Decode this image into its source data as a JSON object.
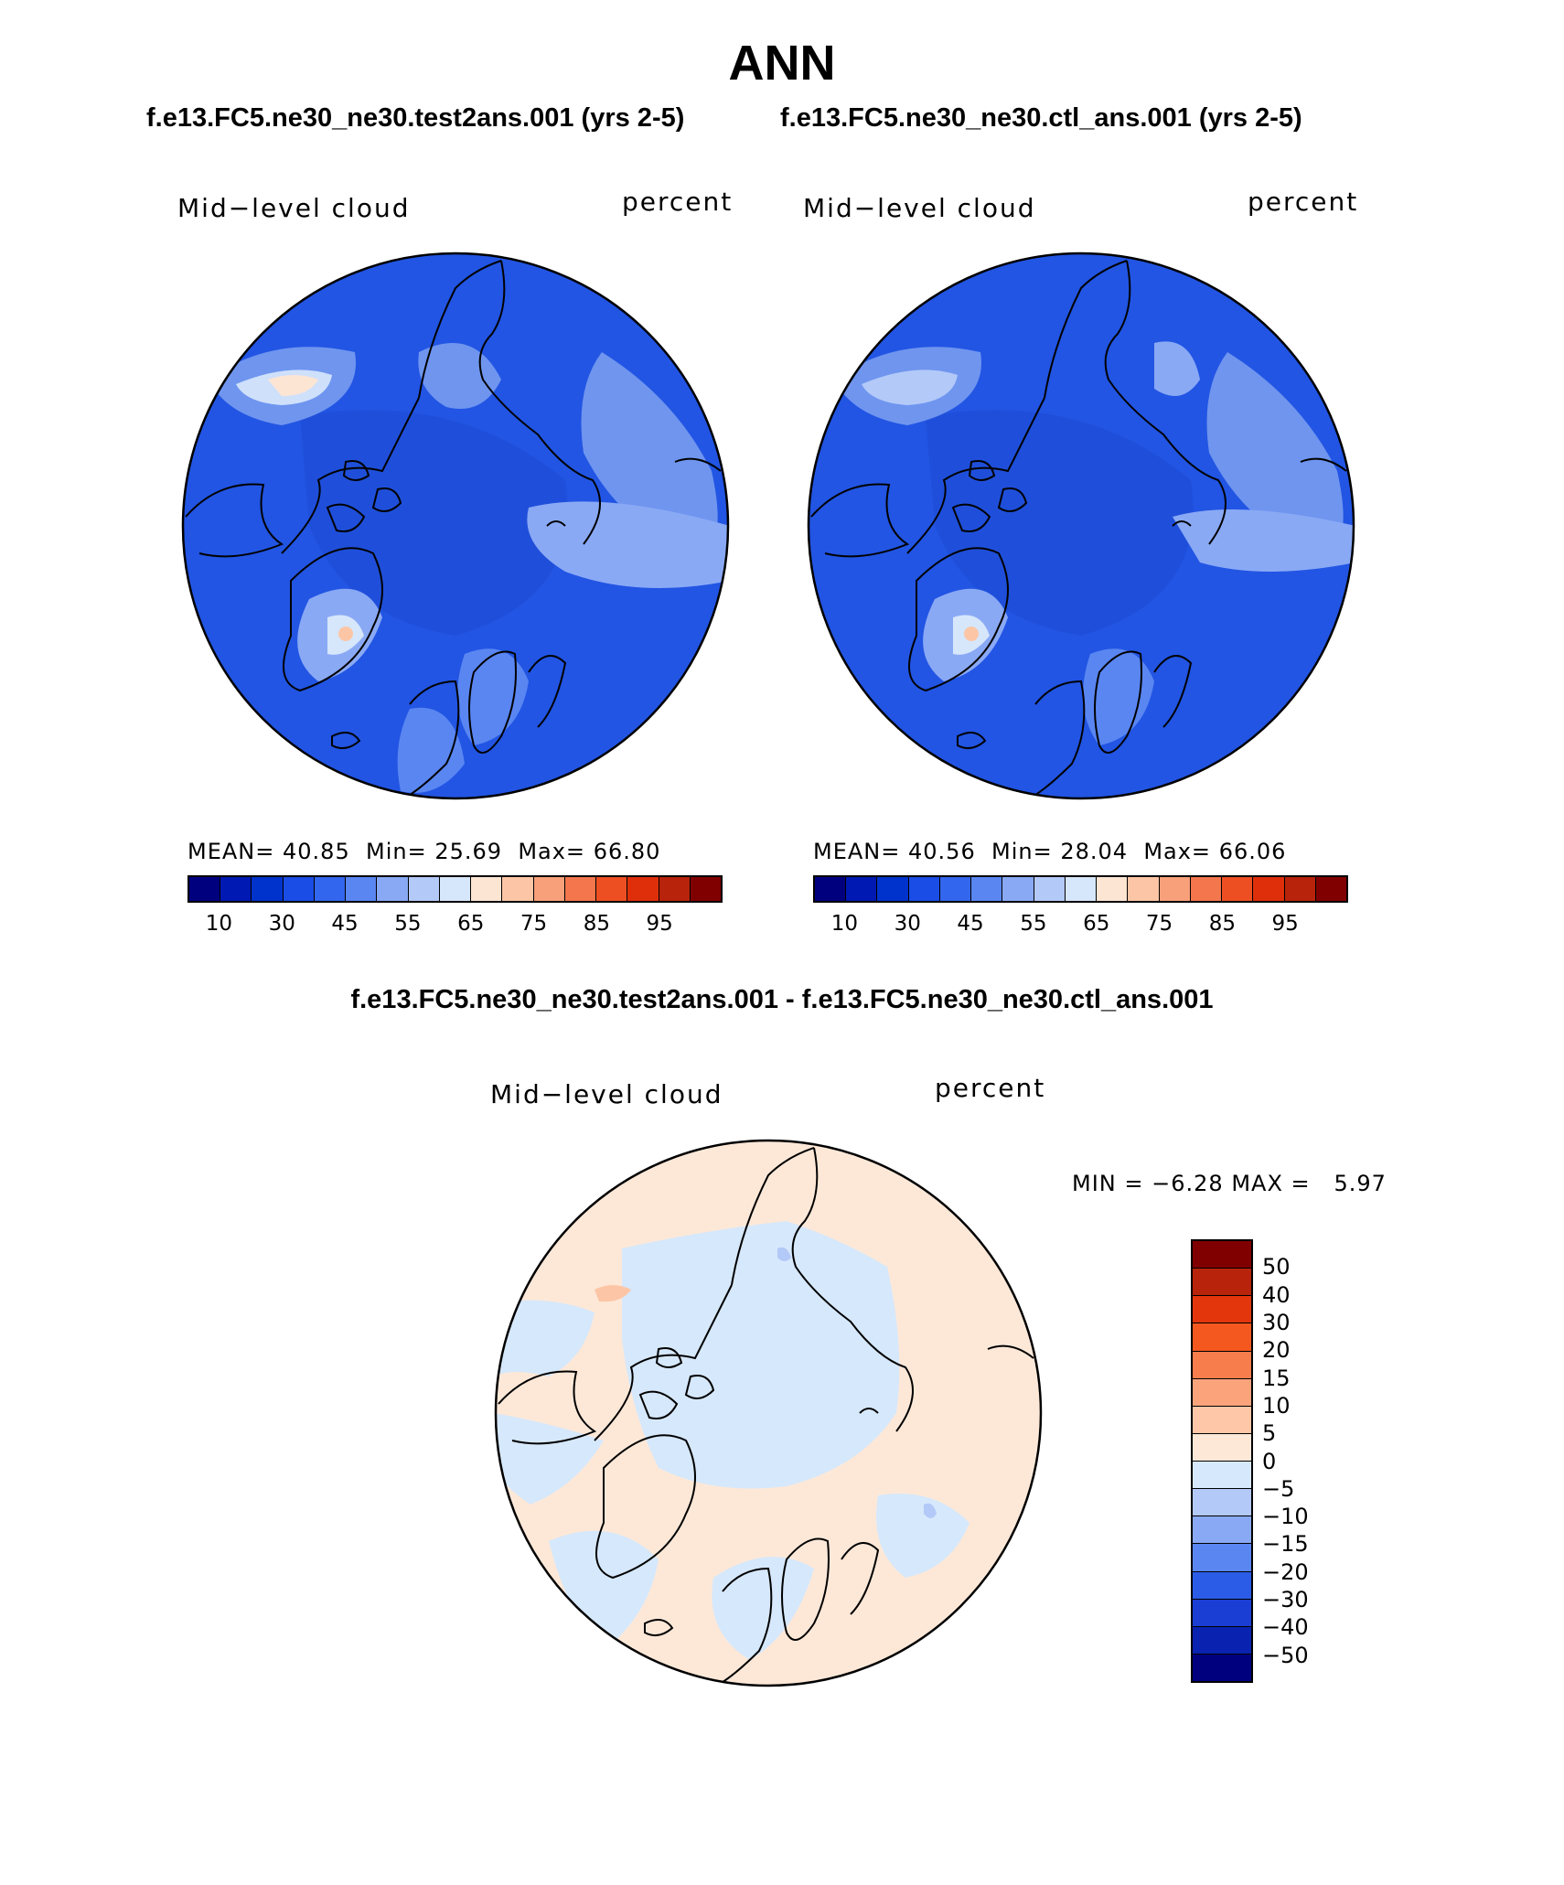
{
  "figure": {
    "title": "ANN",
    "case_a": "f.e13.FC5.ne30_ne30.test2ans.001 (yrs 2-5)",
    "case_b": "f.e13.FC5.ne30_ne30.ctl_ans.001 (yrs 2-5)",
    "diff_title": "f.e13.FC5.ne30_ne30.test2ans.001 - f.e13.FC5.ne30_ne30.ctl_ans.001"
  },
  "panels": [
    {
      "variable": "Mid−level cloud",
      "units": "percent",
      "stats": {
        "mean_label": "MEAN=",
        "mean": "40.85",
        "min_label": "Min=",
        "min": "25.69",
        "max_label": "Max=",
        "max": "66.80"
      }
    },
    {
      "variable": "Mid−level cloud",
      "units": "percent",
      "stats": {
        "mean_label": "MEAN=",
        "mean": "40.56",
        "min_label": "Min=",
        "min": "28.04",
        "max_label": "Max=",
        "max": "66.06"
      }
    }
  ],
  "diff_panel": {
    "variable": "Mid−level cloud",
    "units": "percent",
    "min_label": "MIN =",
    "min": "−6.28",
    "max_label": "MAX =",
    "max": "5.97"
  },
  "colorbar_abs": {
    "colors": [
      "#00007f",
      "#0019b2",
      "#0033cc",
      "#1a4ce6",
      "#3366ee",
      "#5a86f2",
      "#8aa9f5",
      "#b3c9f8",
      "#d6e6fb",
      "#fde5d3",
      "#fcc6a6",
      "#f8a07a",
      "#f3764d",
      "#ee4f22",
      "#de2f0a",
      "#b8230b",
      "#800000"
    ],
    "ticks": [
      "10",
      "30",
      "45",
      "55",
      "65",
      "75",
      "85",
      "95"
    ]
  },
  "colorbar_diff": {
    "colors": [
      "#800000",
      "#b8230b",
      "#e3360d",
      "#f4581f",
      "#f87d4c",
      "#fba47c",
      "#fdc7a8",
      "#fde8d8",
      "#d6e8fb",
      "#b3c9f8",
      "#8aa9f5",
      "#5a86f2",
      "#2b5ce8",
      "#1a3ed4",
      "#0a22b0",
      "#00007f"
    ],
    "ticks": [
      "50",
      "40",
      "30",
      "20",
      "15",
      "10",
      "5",
      "0",
      "−5",
      "−10",
      "−15",
      "−20",
      "−30",
      "−40",
      "−50"
    ]
  }
}
